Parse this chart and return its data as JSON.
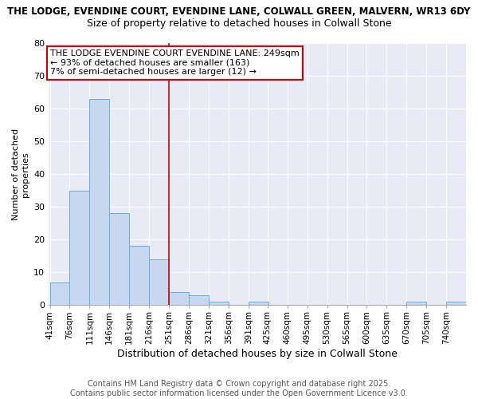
{
  "title": "THE LODGE, EVENDINE COURT, EVENDINE LANE, COLWALL GREEN, MALVERN, WR13 6DY",
  "subtitle": "Size of property relative to detached houses in Colwall Stone",
  "xlabel": "Distribution of detached houses by size in Colwall Stone",
  "ylabel": "Number of detached\nproperties",
  "bar_edges": [
    41,
    76,
    111,
    146,
    181,
    216,
    251,
    286,
    321,
    356,
    391,
    425,
    460,
    495,
    530,
    565,
    600,
    635,
    670,
    705,
    740,
    775
  ],
  "bar_heights": [
    7,
    35,
    63,
    28,
    18,
    14,
    4,
    3,
    1,
    0,
    1,
    0,
    0,
    0,
    0,
    0,
    0,
    0,
    1,
    0,
    1
  ],
  "bar_color": "#c5d8f0",
  "bar_edgecolor": "#6baed6",
  "bar_linewidth": 0.7,
  "vline_x": 251,
  "vline_color": "#cc0000",
  "ylim": [
    0,
    80
  ],
  "yticks": [
    0,
    10,
    20,
    30,
    40,
    50,
    60,
    70,
    80
  ],
  "annotation_text": "THE LODGE EVENDINE COURT EVENDINE LANE: 249sqm\n← 93% of detached houses are smaller (163)\n7% of semi-detached houses are larger (12) →",
  "annotation_box_color": "#cc0000",
  "background_color": "#e8eaf6",
  "grid_color": "#ffffff",
  "footer_text": "Contains HM Land Registry data © Crown copyright and database right 2025.\nContains public sector information licensed under the Open Government Licence v3.0.",
  "title_fontsize": 8.5,
  "subtitle_fontsize": 9,
  "annotation_fontsize": 8,
  "footer_fontsize": 7,
  "ylabel_fontsize": 8,
  "xlabel_fontsize": 9,
  "ytick_fontsize": 8,
  "xtick_fontsize": 7.5
}
